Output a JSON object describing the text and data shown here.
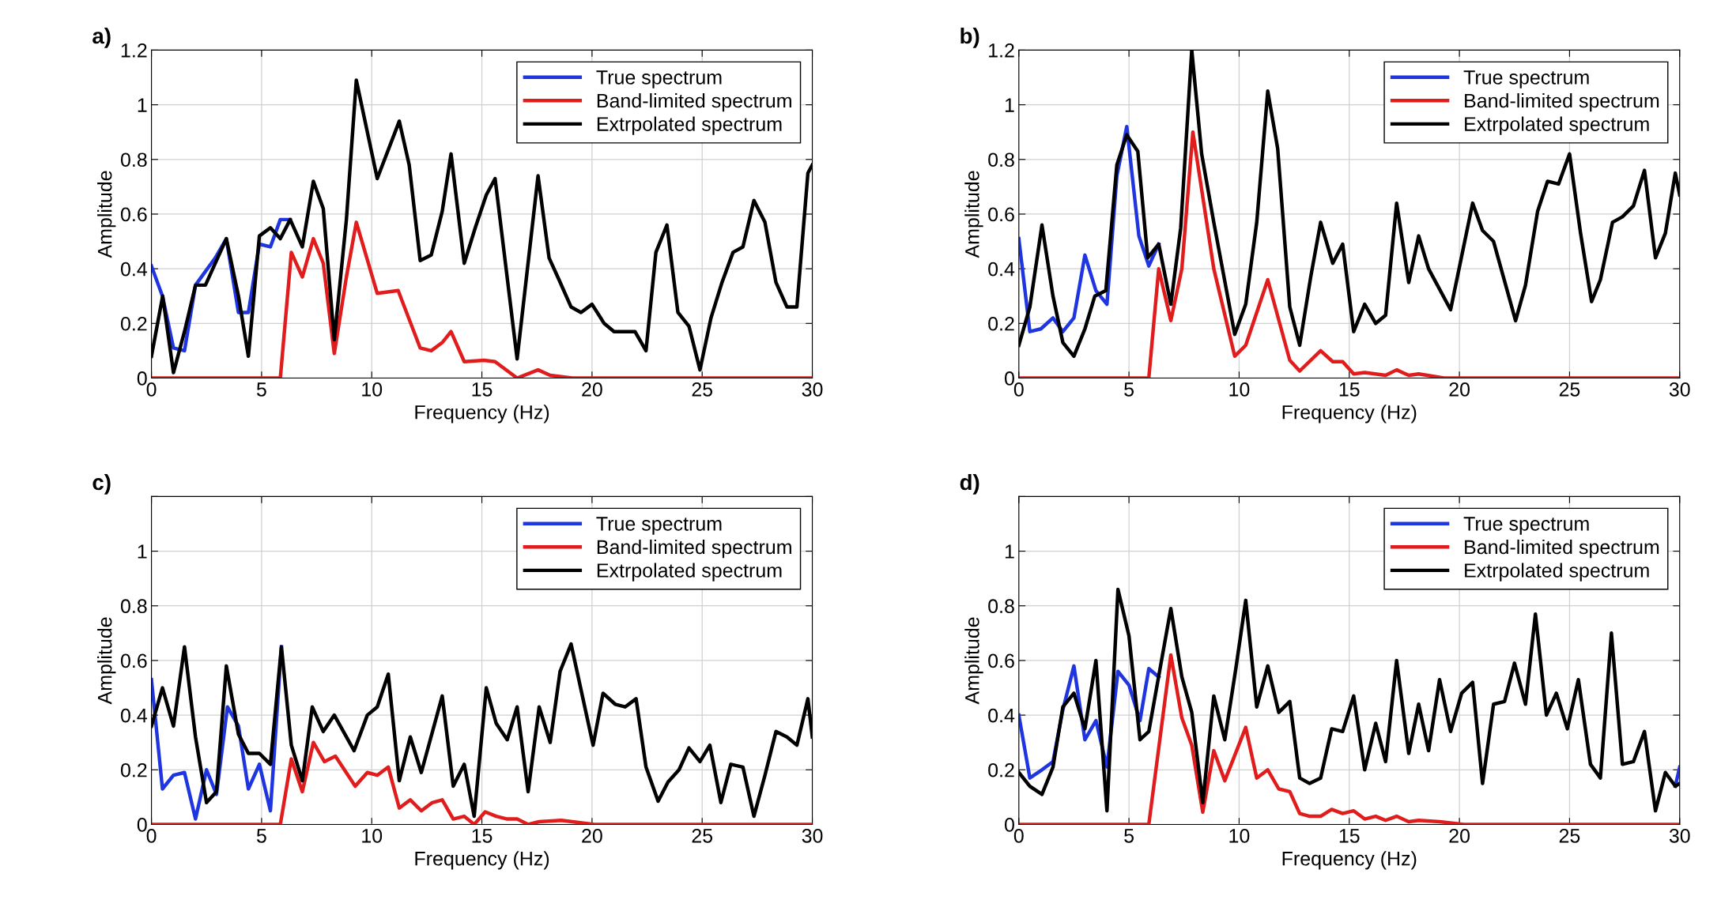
{
  "chart_data": [
    {
      "type": "line",
      "title": "a)",
      "xlabel": "Frequency (Hz)",
      "ylabel": "Amplitude",
      "xlim": [
        0,
        30
      ],
      "xticks": [
        0,
        5,
        10,
        15,
        20,
        25,
        30
      ],
      "ylim": [
        0,
        1.2
      ],
      "yticks": [
        0,
        0.2,
        0.4,
        0.6,
        0.8,
        1,
        1.2
      ],
      "grid": true,
      "legend": "top right",
      "line_style": "solid",
      "marker": "none",
      "series": [
        {
          "name": "True spectrum",
          "color": "#1f35e0",
          "x": [
            0,
            0.5,
            1,
            1.5,
            2,
            2.9,
            3.4,
            3.95,
            4.4,
            4.9,
            5.4,
            5.85,
            6.3
          ],
          "values": [
            0.41,
            0.3,
            0.11,
            0.1,
            0.34,
            0.44,
            0.51,
            0.24,
            0.24,
            0.49,
            0.48,
            0.58,
            0.58
          ]
        },
        {
          "name": "Band-limited spectrum",
          "color": "#e01c1c",
          "x": [
            0,
            5.85,
            6.35,
            6.85,
            7.35,
            7.8,
            8.3,
            8.85,
            9.3,
            10.25,
            11.2,
            12.2,
            12.7,
            13.2,
            13.6,
            14.2,
            15.1,
            15.6,
            16.6,
            17.55,
            18.1,
            19.1,
            30
          ],
          "values": [
            0,
            0,
            0.46,
            0.37,
            0.51,
            0.42,
            0.09,
            0.37,
            0.57,
            0.31,
            0.32,
            0.11,
            0.1,
            0.13,
            0.17,
            0.06,
            0.065,
            0.06,
            0,
            0.03,
            0.01,
            0,
            0
          ]
        },
        {
          "name": "Extrpolated spectrum",
          "color": "#000000",
          "x": [
            0,
            0.51,
            1,
            1.5,
            2,
            2.45,
            3.4,
            3.95,
            4.4,
            4.9,
            5.4,
            5.85,
            6.3,
            6.85,
            7.35,
            7.8,
            8.3,
            8.85,
            9.3,
            10.25,
            11.25,
            11.7,
            12.2,
            12.7,
            13.2,
            13.6,
            14.2,
            14.7,
            15.2,
            15.6,
            16.6,
            17.55,
            18.05,
            18.5,
            19.05,
            19.5,
            20,
            20.55,
            21,
            21.95,
            22.45,
            22.9,
            23.4,
            23.9,
            24.4,
            24.9,
            25.4,
            25.9,
            26.4,
            26.85,
            27.35,
            27.85,
            28.35,
            28.85,
            29.3,
            29.8,
            30
          ],
          "values": [
            0.08,
            0.3,
            0.02,
            0.17,
            0.34,
            0.34,
            0.51,
            0.3,
            0.08,
            0.52,
            0.55,
            0.51,
            0.58,
            0.48,
            0.72,
            0.62,
            0.14,
            0.58,
            1.09,
            0.73,
            0.94,
            0.78,
            0.43,
            0.45,
            0.61,
            0.82,
            0.42,
            0.55,
            0.67,
            0.73,
            0.07,
            0.74,
            0.44,
            0.36,
            0.26,
            0.24,
            0.27,
            0.2,
            0.17,
            0.17,
            0.1,
            0.46,
            0.56,
            0.24,
            0.19,
            0.03,
            0.22,
            0.35,
            0.46,
            0.48,
            0.65,
            0.57,
            0.35,
            0.26,
            0.26,
            0.75,
            0.78
          ]
        }
      ]
    },
    {
      "type": "line",
      "title": "b)",
      "xlabel": "Frequency (Hz)",
      "ylabel": "Amplitude",
      "xlim": [
        0,
        30
      ],
      "xticks": [
        0,
        5,
        10,
        15,
        20,
        25,
        30
      ],
      "ylim": [
        0,
        1.2
      ],
      "yticks": [
        0,
        0.2,
        0.4,
        0.6,
        0.8,
        1,
        1.2
      ],
      "grid": true,
      "legend": "top right",
      "line_style": "solid",
      "marker": "none",
      "series": [
        {
          "name": "True spectrum",
          "color": "#1f35e0",
          "x": [
            0,
            0.5,
            1,
            1.55,
            2,
            2.5,
            3,
            3.5,
            4,
            4.45,
            4.9,
            5.45,
            5.9,
            6.35
          ],
          "values": [
            0.51,
            0.17,
            0.18,
            0.22,
            0.17,
            0.22,
            0.45,
            0.32,
            0.27,
            0.74,
            0.92,
            0.52,
            0.41,
            0.49
          ]
        },
        {
          "name": "Band-limited spectrum",
          "color": "#e01c1c",
          "x": [
            0,
            5.9,
            6.35,
            6.9,
            7.4,
            7.9,
            8.85,
            9.8,
            10.3,
            11.3,
            12.3,
            12.75,
            13.7,
            14.25,
            14.7,
            15.2,
            15.7,
            16.65,
            17.15,
            17.7,
            18.15,
            19.3,
            30
          ],
          "values": [
            0,
            0,
            0.4,
            0.21,
            0.4,
            0.9,
            0.4,
            0.08,
            0.12,
            0.36,
            0.065,
            0.026,
            0.1,
            0.06,
            0.06,
            0.015,
            0.02,
            0.01,
            0.03,
            0.01,
            0.015,
            0,
            0
          ]
        },
        {
          "name": "Extrpolated spectrum",
          "color": "#000000",
          "x": [
            0,
            0.5,
            1.05,
            1.55,
            2,
            2.5,
            3,
            3.45,
            3.95,
            4.45,
            4.9,
            5.4,
            5.85,
            6.35,
            6.9,
            7.35,
            7.85,
            8.3,
            8.85,
            9.8,
            10.3,
            10.8,
            11.3,
            11.75,
            12.3,
            12.75,
            13.25,
            13.7,
            14.25,
            14.7,
            15.2,
            15.7,
            16.2,
            16.65,
            17.15,
            17.7,
            18.15,
            18.6,
            19.6,
            20.6,
            21.05,
            21.55,
            22.55,
            23,
            23.55,
            24,
            24.5,
            25,
            25.5,
            26,
            26.4,
            26.95,
            27.4,
            27.9,
            28.4,
            28.9,
            29.35,
            29.8,
            30
          ],
          "values": [
            0.12,
            0.26,
            0.56,
            0.3,
            0.13,
            0.08,
            0.18,
            0.3,
            0.32,
            0.78,
            0.89,
            0.83,
            0.44,
            0.49,
            0.27,
            0.55,
            1.2,
            0.82,
            0.57,
            0.16,
            0.27,
            0.57,
            1.05,
            0.84,
            0.26,
            0.12,
            0.37,
            0.57,
            0.42,
            0.49,
            0.17,
            0.27,
            0.2,
            0.23,
            0.64,
            0.35,
            0.52,
            0.4,
            0.25,
            0.64,
            0.54,
            0.5,
            0.21,
            0.34,
            0.61,
            0.72,
            0.71,
            0.82,
            0.53,
            0.28,
            0.36,
            0.57,
            0.59,
            0.63,
            0.76,
            0.44,
            0.53,
            0.75,
            0.67
          ]
        }
      ]
    },
    {
      "type": "line",
      "title": "c)",
      "xlabel": "Frequency (Hz)",
      "ylabel": "Amplitude",
      "xlim": [
        0,
        30
      ],
      "xticks": [
        0,
        5,
        10,
        15,
        20,
        25,
        30
      ],
      "ylim": [
        0,
        1.2
      ],
      "yticks": [
        0,
        0.2,
        0.4,
        0.6,
        0.8,
        1,
        {
          "value": 1.2,
          "label": null
        }
      ],
      "grid": true,
      "legend": "top right",
      "line_style": "solid",
      "marker": "none",
      "series": [
        {
          "name": "True spectrum",
          "color": "#1f35e0",
          "x": [
            0,
            0.5,
            1,
            1.5,
            2,
            2.5,
            2.95,
            3.45,
            3.95,
            4.4,
            4.9,
            5.4,
            5.9
          ],
          "values": [
            0.53,
            0.13,
            0.18,
            0.19,
            0.02,
            0.2,
            0.11,
            0.43,
            0.36,
            0.13,
            0.22,
            0.05,
            0.65
          ]
        },
        {
          "name": "Band-limited spectrum",
          "color": "#e01c1c",
          "x": [
            0,
            5.85,
            6.35,
            6.85,
            7.35,
            7.85,
            8.35,
            9.25,
            9.8,
            10.25,
            10.75,
            11.25,
            11.75,
            12.25,
            12.75,
            13.2,
            13.7,
            14.2,
            14.65,
            15.15,
            15.65,
            16.15,
            16.6,
            17.1,
            17.6,
            18.6,
            19.1,
            20.1,
            30
          ],
          "values": [
            0,
            0,
            0.24,
            0.12,
            0.3,
            0.23,
            0.25,
            0.14,
            0.19,
            0.18,
            0.21,
            0.06,
            0.09,
            0.05,
            0.08,
            0.09,
            0.02,
            0.03,
            0,
            0.046,
            0.03,
            0.02,
            0.02,
            0,
            0.01,
            0.015,
            0.01,
            0,
            0
          ]
        },
        {
          "name": "Extrpolated spectrum",
          "color": "#000000",
          "x": [
            0,
            0.5,
            1,
            1.5,
            2,
            2.5,
            2.95,
            3.4,
            3.95,
            4.4,
            4.9,
            5.4,
            5.9,
            6.35,
            6.85,
            7.3,
            7.8,
            8.3,
            9.2,
            9.8,
            10.25,
            10.75,
            11.25,
            11.75,
            12.25,
            13.2,
            13.7,
            14.2,
            14.65,
            15.2,
            15.65,
            16.15,
            16.6,
            17.1,
            17.6,
            18.1,
            18.55,
            19.05,
            20.05,
            20.5,
            21.05,
            21.5,
            22,
            22.45,
            23,
            23.45,
            23.95,
            24.4,
            24.9,
            25.35,
            25.85,
            26.3,
            26.85,
            27.35,
            27.85,
            28.35,
            28.85,
            29.3,
            29.8,
            30
          ],
          "values": [
            0.36,
            0.5,
            0.36,
            0.65,
            0.32,
            0.08,
            0.12,
            0.58,
            0.33,
            0.26,
            0.26,
            0.22,
            0.65,
            0.29,
            0.16,
            0.43,
            0.34,
            0.4,
            0.27,
            0.4,
            0.43,
            0.55,
            0.16,
            0.32,
            0.19,
            0.47,
            0.14,
            0.22,
            0.03,
            0.5,
            0.37,
            0.31,
            0.43,
            0.12,
            0.43,
            0.3,
            0.56,
            0.66,
            0.29,
            0.48,
            0.44,
            0.43,
            0.46,
            0.21,
            0.085,
            0.155,
            0.2,
            0.28,
            0.23,
            0.29,
            0.08,
            0.22,
            0.21,
            0.03,
            0.18,
            0.34,
            0.32,
            0.29,
            0.46,
            0.32
          ]
        }
      ]
    },
    {
      "type": "line",
      "title": "d)",
      "xlabel": "Frequency (Hz)",
      "ylabel": "Amplitude",
      "xlim": [
        0,
        30
      ],
      "xticks": [
        0,
        5,
        10,
        15,
        20,
        25,
        30
      ],
      "ylim": [
        0,
        1.2
      ],
      "yticks": [
        0,
        0.2,
        0.4,
        0.6,
        0.8,
        1,
        {
          "value": 1.2,
          "label": null
        }
      ],
      "grid": true,
      "legend": "top right",
      "line_style": "solid",
      "marker": "none",
      "series": [
        {
          "name": "True spectrum",
          "color": "#1f35e0",
          "x": [
            0,
            0.5,
            1.05,
            1.55,
            2,
            2.5,
            3,
            3.5,
            4,
            4.5,
            5,
            5.5,
            5.9,
            6.35,
            17,
            29.8,
            30
          ],
          "values": [
            0.4,
            0.17,
            0.2,
            0.23,
            0.42,
            0.58,
            0.31,
            0.38,
            0.21,
            0.56,
            0.51,
            0.38,
            0.57,
            0.54,
            null,
            0.14,
            0.21
          ]
        },
        {
          "name": "Band-limited spectrum",
          "color": "#e01c1c",
          "x": [
            0,
            5.9,
            6.9,
            7.4,
            7.85,
            8.35,
            8.85,
            9.35,
            10.3,
            10.8,
            11.3,
            11.8,
            12.3,
            12.75,
            13.2,
            13.7,
            14.2,
            14.7,
            15.2,
            15.7,
            16.2,
            16.65,
            17.15,
            17.7,
            18.15,
            19.1,
            20.2,
            30
          ],
          "values": [
            0,
            0,
            0.62,
            0.39,
            0.29,
            0.045,
            0.27,
            0.16,
            0.355,
            0.17,
            0.2,
            0.13,
            0.12,
            0.04,
            0.03,
            0.03,
            0.055,
            0.04,
            0.05,
            0.02,
            0.03,
            0.015,
            0.03,
            0.01,
            0.015,
            0.01,
            0,
            0
          ]
        },
        {
          "name": "Extrpolated spectrum",
          "color": "#000000",
          "x": [
            0,
            0.5,
            1.05,
            1.55,
            2,
            2.5,
            3,
            3.5,
            4,
            4.5,
            5,
            5.5,
            5.9,
            6.9,
            7.4,
            7.85,
            8.35,
            8.85,
            9.35,
            9.85,
            10.3,
            10.8,
            11.3,
            11.8,
            12.3,
            12.75,
            13.2,
            13.7,
            14.2,
            14.7,
            15.2,
            15.7,
            16.2,
            16.65,
            17.15,
            17.7,
            18.15,
            18.6,
            19.1,
            19.6,
            20.1,
            20.6,
            21.05,
            21.55,
            22.05,
            22.5,
            23,
            23.45,
            23.95,
            24.4,
            24.9,
            25.4,
            25.95,
            26.4,
            26.9,
            27.4,
            27.9,
            28.4,
            28.9,
            29.35,
            29.8,
            30
          ],
          "values": [
            0.19,
            0.14,
            0.11,
            0.21,
            0.43,
            0.48,
            0.35,
            0.6,
            0.05,
            0.86,
            0.69,
            0.31,
            0.34,
            0.79,
            0.54,
            0.41,
            0.08,
            0.47,
            0.31,
            0.57,
            0.82,
            0.43,
            0.58,
            0.41,
            0.45,
            0.17,
            0.15,
            0.17,
            0.35,
            0.34,
            0.47,
            0.2,
            0.37,
            0.23,
            0.6,
            0.26,
            0.44,
            0.27,
            0.53,
            0.34,
            0.48,
            0.52,
            0.15,
            0.44,
            0.45,
            0.59,
            0.44,
            0.77,
            0.4,
            0.48,
            0.35,
            0.53,
            0.22,
            0.17,
            0.7,
            0.22,
            0.23,
            0.34,
            0.05,
            0.19,
            0.14,
            0.15
          ]
        }
      ]
    }
  ]
}
